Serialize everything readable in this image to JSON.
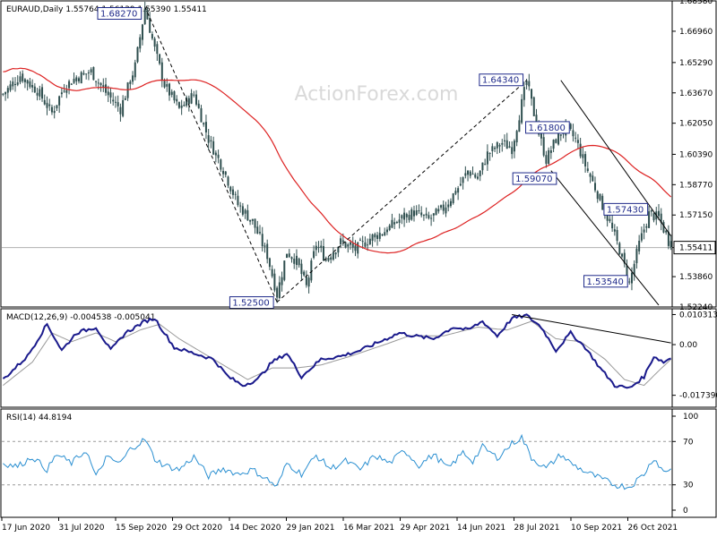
{
  "chart_data": [
    {
      "type": "candlestick",
      "symbol": "EURAUD",
      "timeframe": "Daily",
      "ohlc_header": [
        "1.55764",
        "1.56139",
        "1.55390",
        "1.55411"
      ],
      "watermark": "ActionForex.com",
      "current_price": "1.55411",
      "y_ticks": [
        "1.68580",
        "1.66960",
        "1.65290",
        "1.63670",
        "1.62050",
        "1.60390",
        "1.58770",
        "1.57150",
        "1.55411",
        "1.53860",
        "1.52240"
      ],
      "ylim": [
        1.5224,
        1.6858
      ],
      "x_ticks": [
        "17 Jun 2020",
        "31 Jul 2020",
        "15 Sep 2020",
        "29 Oct 2020",
        "14 Dec 2020",
        "29 Jan 2021",
        "16 Mar 2021",
        "29 Apr 2021",
        "14 Jun 2021",
        "28 Jul 2021",
        "10 Sep 2021",
        "26 Oct 2021"
      ],
      "price_path": [
        [
          0,
          1.636
        ],
        [
          7,
          1.646
        ],
        [
          14,
          1.638
        ],
        [
          20,
          1.626
        ],
        [
          25,
          1.64
        ],
        [
          30,
          1.645
        ],
        [
          36,
          1.648
        ],
        [
          42,
          1.637
        ],
        [
          48,
          1.628
        ],
        [
          54,
          1.651
        ],
        [
          58,
          1.682
        ],
        [
          62,
          1.66
        ],
        [
          66,
          1.641
        ],
        [
          72,
          1.628
        ],
        [
          78,
          1.636
        ],
        [
          84,
          1.612
        ],
        [
          90,
          1.596
        ],
        [
          96,
          1.577
        ],
        [
          102,
          1.568
        ],
        [
          108,
          1.55
        ],
        [
          112,
          1.529
        ],
        [
          116,
          1.552
        ],
        [
          120,
          1.547
        ],
        [
          124,
          1.533
        ],
        [
          128,
          1.556
        ],
        [
          132,
          1.548
        ],
        [
          138,
          1.557
        ],
        [
          144,
          1.553
        ],
        [
          150,
          1.559
        ],
        [
          156,
          1.563
        ],
        [
          162,
          1.569
        ],
        [
          168,
          1.573
        ],
        [
          174,
          1.569
        ],
        [
          180,
          1.575
        ],
        [
          186,
          1.586
        ],
        [
          190,
          1.595
        ],
        [
          194,
          1.591
        ],
        [
          198,
          1.604
        ],
        [
          204,
          1.61
        ],
        [
          208,
          1.607
        ],
        [
          214,
          1.643
        ],
        [
          218,
          1.62
        ],
        [
          222,
          1.601
        ],
        [
          226,
          1.612
        ],
        [
          230,
          1.618
        ],
        [
          234,
          1.612
        ],
        [
          238,
          1.598
        ],
        [
          243,
          1.583
        ],
        [
          248,
          1.567
        ],
        [
          252,
          1.553
        ],
        [
          256,
          1.535
        ],
        [
          260,
          1.556
        ],
        [
          264,
          1.572
        ],
        [
          268,
          1.57
        ],
        [
          271,
          1.561
        ],
        [
          273,
          1.5541
        ]
      ],
      "n_days": 274,
      "annotations": [
        {
          "label": "1.68270",
          "day": 58,
          "price": 1.6827
        },
        {
          "label": "1.52500",
          "day": 112,
          "price": 1.525
        },
        {
          "label": "1.64340",
          "day": 214,
          "price": 1.6434
        },
        {
          "label": "1.61800",
          "day": 230,
          "price": 1.618
        },
        {
          "label": "1.59070",
          "day": 224,
          "price": 1.5907
        },
        {
          "label": "1.57430",
          "day": 262,
          "price": 1.5743
        },
        {
          "label": "1.53540",
          "day": 256,
          "price": 1.5354
        }
      ],
      "trendlines": [
        {
          "from": [
            58,
            1.6827
          ],
          "to": [
            112,
            1.525
          ],
          "style": "dashed"
        },
        {
          "from": [
            112,
            1.525
          ],
          "to": [
            214,
            1.6434
          ],
          "style": "dashed"
        },
        {
          "from": [
            228,
            1.6434
          ],
          "to": [
            273,
            1.5603
          ],
          "style": "solid"
        },
        {
          "from": [
            224,
            1.5952
          ],
          "to": [
            268,
            1.5234
          ],
          "style": "solid"
        }
      ],
      "moving_average_color": "#dd2222",
      "candle_color": "#2f4f4f"
    },
    {
      "type": "line",
      "title": "MACD(12,26,9) -0.004538 -0.005041",
      "y_ticks": [
        "0.010313",
        "0.00",
        "-0.017396"
      ],
      "ylim": [
        -0.0215,
        0.0123
      ],
      "series": [
        {
          "name": "MACD",
          "color": "#1a1a8c",
          "values_path": [
            [
              0,
              -0.012
            ],
            [
              10,
              -0.004
            ],
            [
              18,
              0.007
            ],
            [
              24,
              -0.002
            ],
            [
              30,
              0.004
            ],
            [
              38,
              0.006
            ],
            [
              44,
              -0.002
            ],
            [
              50,
              0.004
            ],
            [
              58,
              0.008
            ],
            [
              62,
              0.009
            ],
            [
              70,
              -0.001
            ],
            [
              78,
              -0.003
            ],
            [
              86,
              -0.005
            ],
            [
              92,
              -0.011
            ],
            [
              98,
              -0.014
            ],
            [
              104,
              -0.012
            ],
            [
              110,
              -0.006
            ],
            [
              116,
              -0.003
            ],
            [
              122,
              -0.011
            ],
            [
              130,
              -0.005
            ],
            [
              138,
              -0.004
            ],
            [
              146,
              -0.002
            ],
            [
              154,
              0.001
            ],
            [
              162,
              0.004
            ],
            [
              168,
              0.003
            ],
            [
              176,
              0.002
            ],
            [
              184,
              0.006
            ],
            [
              190,
              0.005
            ],
            [
              196,
              0.008
            ],
            [
              202,
              0.003
            ],
            [
              208,
              0.009
            ],
            [
              214,
              0.01
            ],
            [
              220,
              0.006
            ],
            [
              226,
              -0.002
            ],
            [
              232,
              0.004
            ],
            [
              238,
              -0.001
            ],
            [
              244,
              -0.008
            ],
            [
              250,
              -0.014
            ],
            [
              256,
              -0.015
            ],
            [
              262,
              -0.011
            ],
            [
              266,
              -0.004
            ],
            [
              270,
              -0.006
            ],
            [
              273,
              -0.004538
            ]
          ]
        },
        {
          "name": "Signal",
          "color": "#999999",
          "values_path": [
            [
              0,
              -0.014
            ],
            [
              12,
              -0.006
            ],
            [
              20,
              0.004
            ],
            [
              28,
              0.001
            ],
            [
              38,
              0.004
            ],
            [
              46,
              0.001
            ],
            [
              56,
              0.005
            ],
            [
              64,
              0.007
            ],
            [
              72,
              0.002
            ],
            [
              82,
              -0.003
            ],
            [
              90,
              -0.007
            ],
            [
              100,
              -0.012
            ],
            [
              110,
              -0.008
            ],
            [
              120,
              -0.008
            ],
            [
              130,
              -0.007
            ],
            [
              142,
              -0.004
            ],
            [
              156,
              0.0
            ],
            [
              166,
              0.003
            ],
            [
              180,
              0.003
            ],
            [
              194,
              0.006
            ],
            [
              206,
              0.005
            ],
            [
              216,
              0.008
            ],
            [
              226,
              0.002
            ],
            [
              236,
              0.001
            ],
            [
              246,
              -0.005
            ],
            [
              254,
              -0.012
            ],
            [
              262,
              -0.014
            ],
            [
              268,
              -0.009
            ],
            [
              273,
              -0.005041
            ]
          ]
        }
      ],
      "trendline": {
        "from": [
          208,
          0.0103
        ],
        "to": [
          273,
          0.0006
        ]
      }
    },
    {
      "type": "line",
      "title": "RSI(14) 44.8194",
      "y_ticks": [
        "100",
        "70",
        "30",
        "0"
      ],
      "ylim": [
        0,
        100
      ],
      "levels": [
        70,
        30
      ],
      "series": [
        {
          "name": "RSI(14)",
          "color": "#2a8fd1",
          "values_path": [
            [
              0,
              50
            ],
            [
              6,
              47
            ],
            [
              12,
              56
            ],
            [
              18,
              44
            ],
            [
              22,
              58
            ],
            [
              28,
              50
            ],
            [
              34,
              62
            ],
            [
              38,
              37
            ],
            [
              42,
              55
            ],
            [
              48,
              50
            ],
            [
              52,
              63
            ],
            [
              58,
              72
            ],
            [
              62,
              54
            ],
            [
              66,
              48
            ],
            [
              72,
              44
            ],
            [
              78,
              56
            ],
            [
              84,
              38
            ],
            [
              90,
              45
            ],
            [
              96,
              40
            ],
            [
              102,
              44
            ],
            [
              108,
              35
            ],
            [
              112,
              28
            ],
            [
              116,
              50
            ],
            [
              122,
              40
            ],
            [
              128,
              57
            ],
            [
              134,
              45
            ],
            [
              140,
              52
            ],
            [
              146,
              44
            ],
            [
              152,
              57
            ],
            [
              158,
              50
            ],
            [
              164,
              62
            ],
            [
              170,
              48
            ],
            [
              176,
              58
            ],
            [
              182,
              45
            ],
            [
              188,
              60
            ],
            [
              192,
              52
            ],
            [
              196,
              65
            ],
            [
              202,
              55
            ],
            [
              208,
              68
            ],
            [
              212,
              74
            ],
            [
              216,
              55
            ],
            [
              222,
              45
            ],
            [
              228,
              58
            ],
            [
              232,
              50
            ],
            [
              238,
              42
            ],
            [
              244,
              36
            ],
            [
              250,
              30
            ],
            [
              256,
              28
            ],
            [
              262,
              40
            ],
            [
              266,
              55
            ],
            [
              270,
              42
            ],
            [
              273,
              44.8194
            ]
          ]
        }
      ]
    }
  ]
}
